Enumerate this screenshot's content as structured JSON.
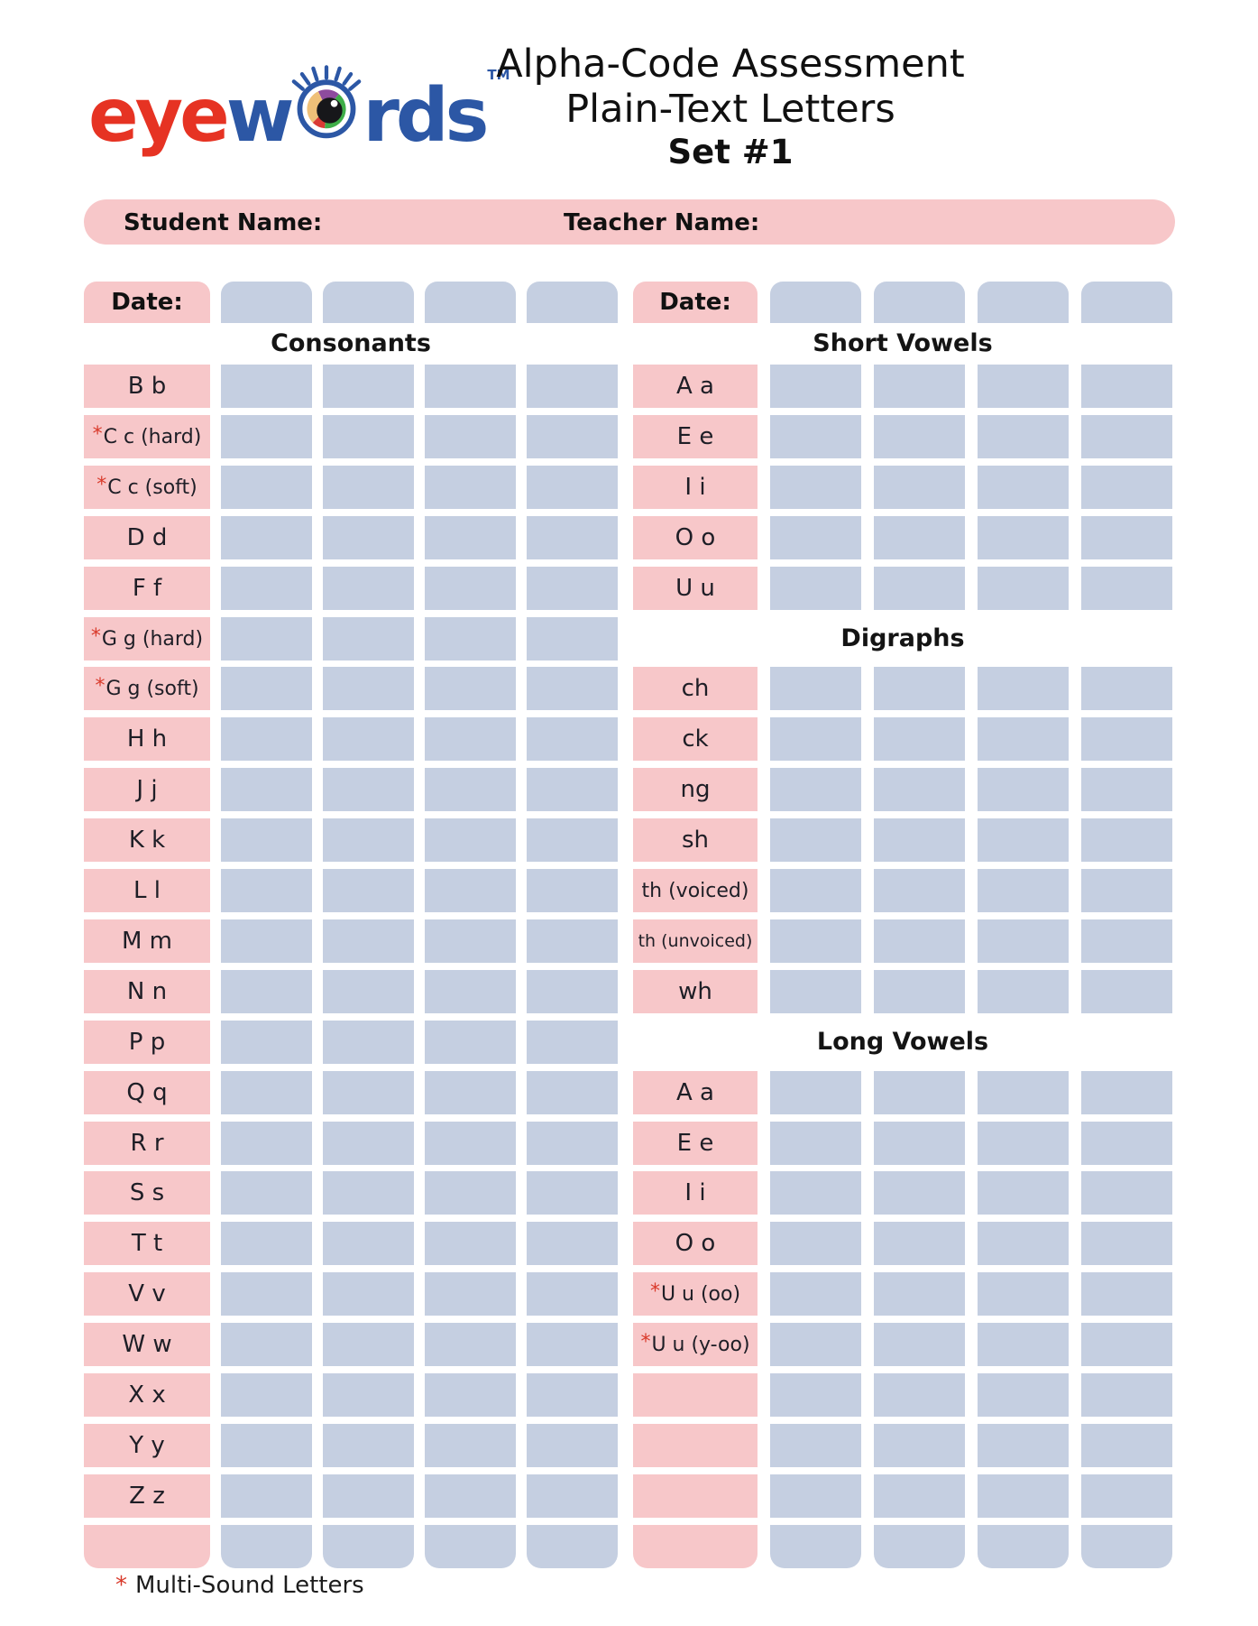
{
  "logo": {
    "prefix": "eye",
    "mid": "w",
    "suffix": "rds",
    "tm": "TM",
    "eye_icon": "eye-with-lashes"
  },
  "title": {
    "line1": "Alpha-Code Assessment",
    "line2": "Plain-Text Letters",
    "line3": "Set #1"
  },
  "names": {
    "student": "Student Name:",
    "teacher": "Teacher Name:"
  },
  "date_label": "Date:",
  "date_columns": 4,
  "score_columns": 4,
  "colors": {
    "pink": "#F7C7C9",
    "blue": "#C5CFE1",
    "red": "#D93A2B",
    "logo_red": "#E63323",
    "logo_blue": "#2C57A5"
  },
  "left_table": {
    "header": "Consonants",
    "rows": [
      "B b",
      "*C c (hard)",
      "*C c (soft)",
      "D d",
      "F f",
      "*G g (hard)",
      "*G g (soft)",
      "H h",
      "J j",
      "K k",
      "L l",
      "M m",
      "N n",
      "P p",
      "Q q",
      "R r",
      "S s",
      "T t",
      "V v",
      "W w",
      "X x",
      "Y y",
      "Z z",
      ""
    ]
  },
  "right_table": {
    "header": "Short Vowels",
    "rows": [
      {
        "t": "row",
        "label": "A a"
      },
      {
        "t": "row",
        "label": "E e"
      },
      {
        "t": "row",
        "label": "I i"
      },
      {
        "t": "row",
        "label": "O o"
      },
      {
        "t": "row",
        "label": "U u"
      },
      {
        "t": "header",
        "label": "Digraphs"
      },
      {
        "t": "row",
        "label": "ch"
      },
      {
        "t": "row",
        "label": "ck"
      },
      {
        "t": "row",
        "label": "ng"
      },
      {
        "t": "row",
        "label": "sh"
      },
      {
        "t": "row",
        "label": "th (voiced)"
      },
      {
        "t": "row",
        "label": "th (unvoiced)"
      },
      {
        "t": "row",
        "label": "wh"
      },
      {
        "t": "header",
        "label": "Long Vowels"
      },
      {
        "t": "row",
        "label": "A a"
      },
      {
        "t": "row",
        "label": "E e"
      },
      {
        "t": "row",
        "label": "I i"
      },
      {
        "t": "row",
        "label": "O o"
      },
      {
        "t": "row",
        "label": "*U u (oo)"
      },
      {
        "t": "row",
        "label": "*U u (y-oo)"
      },
      {
        "t": "row",
        "label": ""
      },
      {
        "t": "row",
        "label": ""
      },
      {
        "t": "row",
        "label": ""
      },
      {
        "t": "row",
        "label": ""
      }
    ]
  },
  "footnote": {
    "star": "*",
    "text": "Multi-Sound Letters"
  }
}
